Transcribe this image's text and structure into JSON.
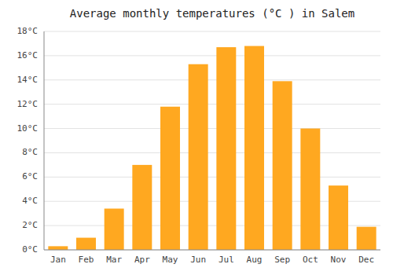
{
  "chart_data": {
    "type": "bar",
    "title": "Average monthly temperatures (°C ) in Salem",
    "categories": [
      "Jan",
      "Feb",
      "Mar",
      "Apr",
      "May",
      "Jun",
      "Jul",
      "Aug",
      "Sep",
      "Oct",
      "Nov",
      "Dec"
    ],
    "values": [
      0.3,
      1.0,
      3.4,
      7.0,
      11.8,
      15.3,
      16.7,
      16.8,
      13.9,
      10.0,
      5.3,
      1.9
    ],
    "color": "#FFA820",
    "ylim": [
      0,
      18
    ],
    "yticks": [
      {
        "value": 0,
        "label": "0°C"
      },
      {
        "value": 2,
        "label": "2°C"
      },
      {
        "value": 4,
        "label": "4°C"
      },
      {
        "value": 6,
        "label": "6°C"
      },
      {
        "value": 8,
        "label": "8°C"
      },
      {
        "value": 10,
        "label": "10°C"
      },
      {
        "value": 12,
        "label": "12°C"
      },
      {
        "value": 14,
        "label": "14°C"
      },
      {
        "value": 16,
        "label": "16°C"
      },
      {
        "value": 18,
        "label": "18°C"
      }
    ],
    "grid": true
  }
}
